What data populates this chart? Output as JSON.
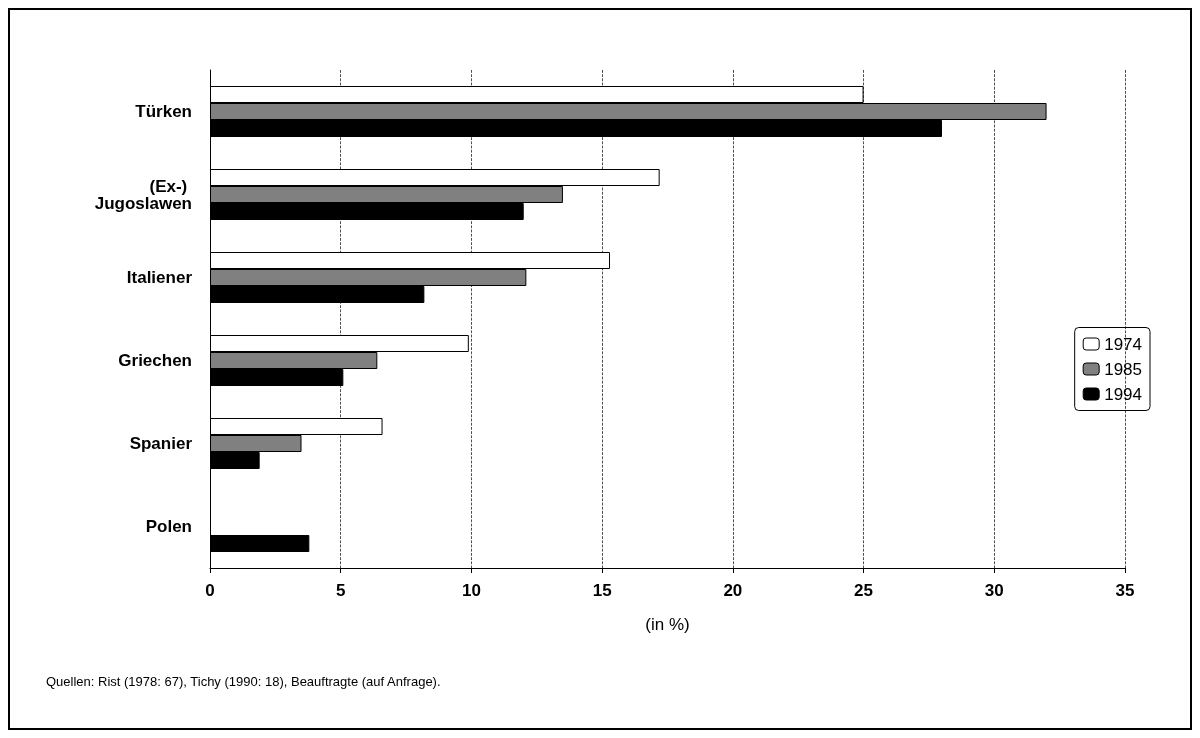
{
  "chart_data": {
    "type": "bar",
    "orientation": "horizontal",
    "xlabel": "(in %)",
    "categories": [
      "Türken",
      "(Ex-) Jugoslawen",
      "Italiener",
      "Griechen",
      "Spanier",
      "Polen"
    ],
    "series": [
      {
        "name": "1974",
        "color": "#ffffff",
        "values": [
          25,
          17.2,
          15.3,
          9.9,
          6.6,
          null
        ]
      },
      {
        "name": "1985",
        "color": "#808080",
        "values": [
          32,
          13.5,
          12.1,
          6.4,
          3.5,
          null
        ]
      },
      {
        "name": "1994",
        "color": "#000000",
        "values": [
          28,
          12,
          8.2,
          5.1,
          1.9,
          3.8
        ]
      }
    ],
    "xlim": [
      0,
      35
    ],
    "xticks": [
      0,
      5,
      10,
      15,
      20,
      25,
      30,
      35
    ],
    "grid": "x",
    "legend": "right",
    "annotations": [
      "Quellen: Rist (1978: 67), Tichy (1990: 18), Beauftragte (auf Anfrage)."
    ]
  }
}
